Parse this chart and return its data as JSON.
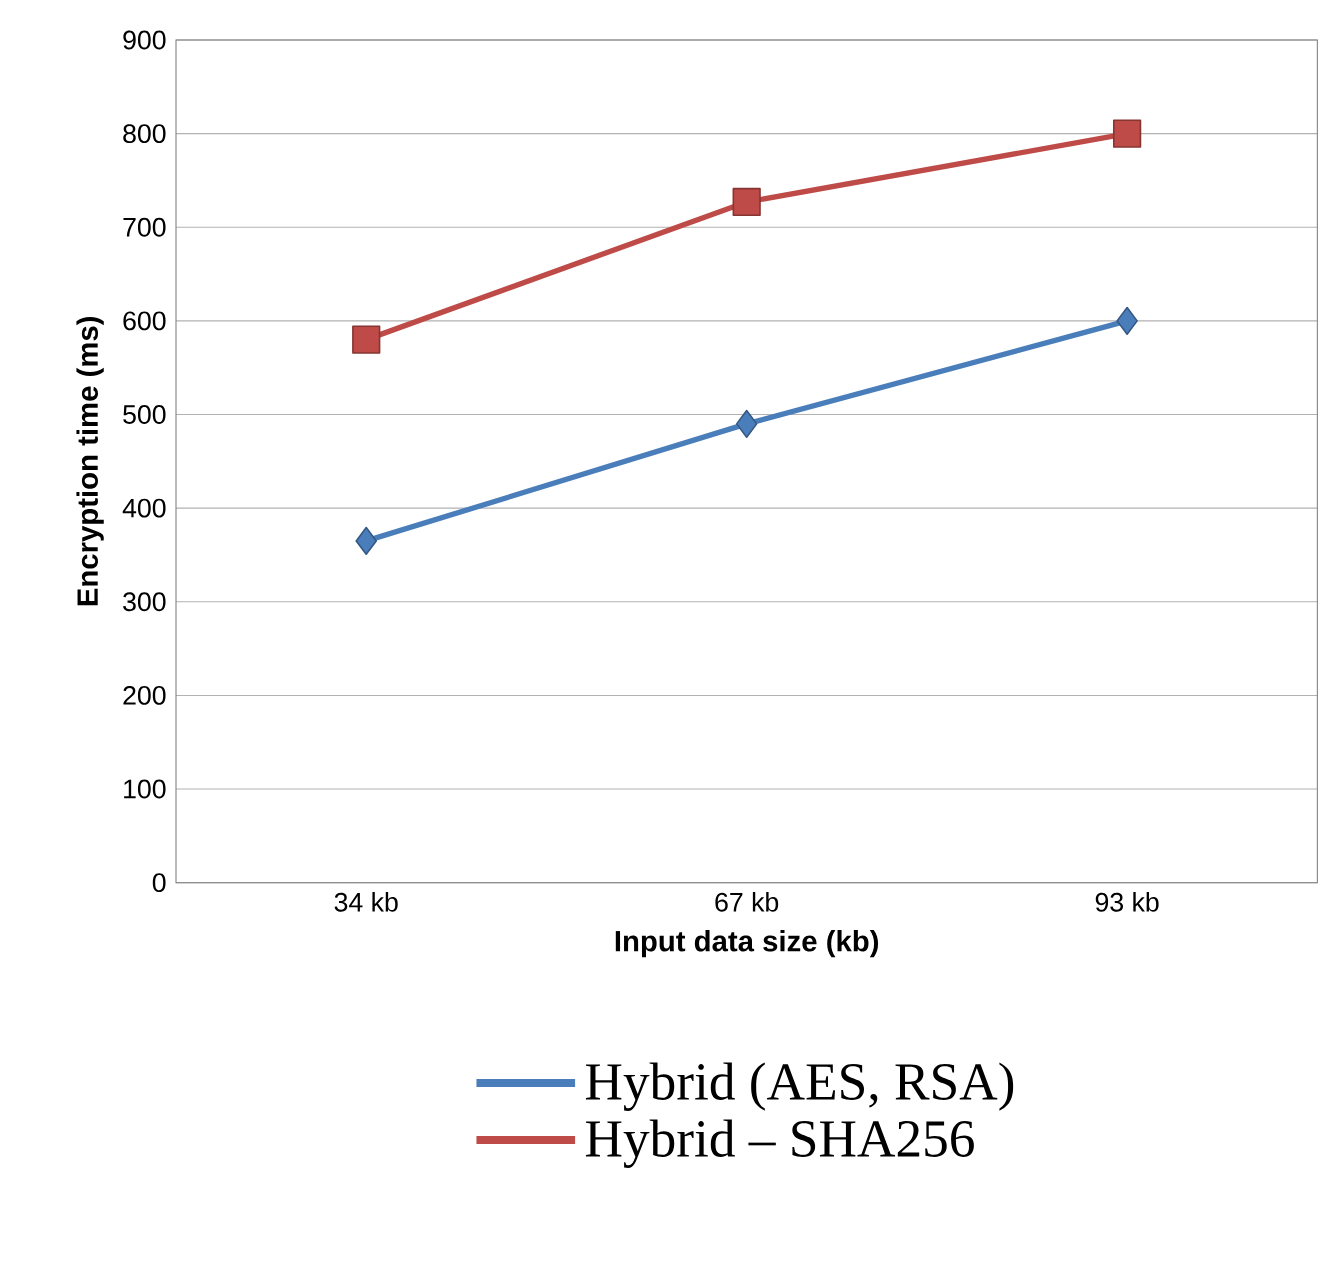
{
  "chart_data": {
    "type": "line",
    "xlabel": "Input data size (kb)",
    "ylabel": "Encryption time (ms)",
    "categories": [
      "34 kb",
      "67 kb",
      "93 kb"
    ],
    "series": [
      {
        "name": "Hybrid (AES, RSA)",
        "color": "#4a7ebb",
        "marker": "diamond",
        "values": [
          365,
          490,
          600
        ]
      },
      {
        "name": "Hybrid – SHA256",
        "color": "#be4b48",
        "marker": "square",
        "values": [
          580,
          727,
          800
        ]
      }
    ],
    "ylim": [
      0,
      900
    ],
    "yticks": [
      0,
      100,
      200,
      300,
      400,
      500,
      600,
      700,
      800,
      900
    ],
    "grid": "y",
    "legend": "bottom"
  }
}
